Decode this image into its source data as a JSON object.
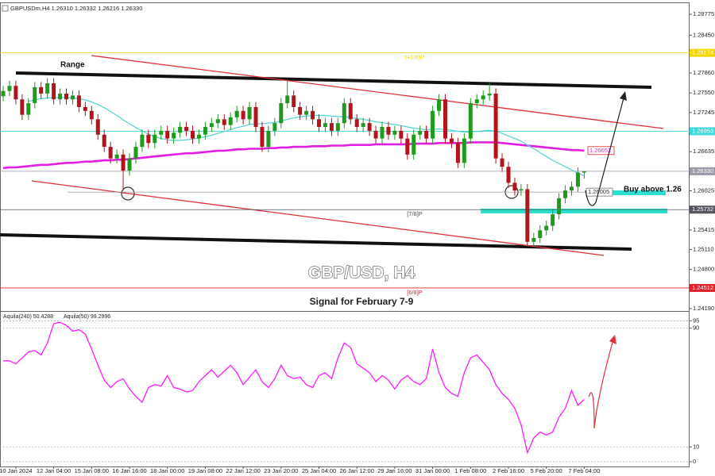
{
  "chart_data": [
    {
      "type": "candlestick",
      "title": "GBPUSDm,H4  1.26310 1.26332 1.26216 1.26330",
      "annotations": [
        "Range",
        "Buy above 1.26",
        "GBP/USD, H4",
        "Signal for February  7-9"
      ],
      "up_color": "#1f9a1f",
      "down_color": "#b3141c",
      "ylim": [
        1.24153,
        1.28936
      ],
      "yticks": [
        {
          "value": 1.28775,
          "label": "1.28775"
        },
        {
          "value": 1.2845,
          "label": "1.28450"
        },
        {
          "value": 1.2786,
          "label": "1.27860"
        },
        {
          "value": 1.2755,
          "label": "1.27550"
        },
        {
          "value": 1.27245,
          "label": "1.27245"
        },
        {
          "value": 1.26635,
          "label": "1.26635"
        },
        {
          "value": 1.26025,
          "label": "1.26025"
        },
        {
          "value": 1.25415,
          "label": "1.25415"
        },
        {
          "value": 1.2511,
          "label": "1.25110"
        },
        {
          "value": 1.248,
          "label": "1.24800"
        },
        {
          "value": 1.2419,
          "label": "1.24190"
        }
      ],
      "levels": [
        {
          "value": 1.28174,
          "label": "1.28174",
          "color": "#f2d600",
          "tag": "(+1/8)P"
        },
        {
          "value": 1.26953,
          "label": "1.26953",
          "color": "#3fd8d8"
        },
        {
          "value": 1.2633,
          "label": "1.26330",
          "color": "#9a9aa8"
        },
        {
          "value": 1.25732,
          "label": "1.25732",
          "color": "#55555f",
          "tag": "[7/8]P"
        },
        {
          "value": 1.24512,
          "label": "1.24512",
          "color": "#e0202a",
          "tag": "[6/8]P"
        }
      ],
      "chart_labels": [
        {
          "value": 1.26652,
          "label": "1.26652",
          "color": "#e0202a"
        },
        {
          "value": 1.26005,
          "label": "1.26005",
          "color": "#777777"
        }
      ],
      "categories": [
        null,
        null,
        "10 Jan 2024",
        null,
        null,
        null,
        null,
        null,
        "12 Jan 04:00",
        null,
        null,
        null,
        null,
        null,
        "15 Jan 08:00",
        null,
        null,
        null,
        null,
        null,
        "16 Jan 16:00",
        null,
        null,
        null,
        null,
        null,
        "18 Jan 00:00",
        null,
        null,
        null,
        null,
        null,
        "19 Jan 08:00",
        null,
        null,
        null,
        null,
        null,
        "22 Jan 12:00",
        null,
        null,
        null,
        null,
        null,
        "23 Jan 20:00",
        null,
        null,
        null,
        null,
        null,
        "25 Jan 04:00",
        null,
        null,
        null,
        null,
        null,
        "26 Jan 12:00",
        null,
        null,
        null,
        null,
        null,
        "29 Jan 16:00",
        null,
        null,
        null,
        null,
        null,
        "31 Jan 00:00",
        null,
        null,
        null,
        null,
        null,
        "1 Feb 08:00",
        null,
        null,
        null,
        null,
        null,
        "2 Feb 16:00",
        null,
        null,
        null,
        null,
        null,
        "5 Feb 20:00",
        null,
        null,
        null,
        null,
        null,
        "7 Feb 04:00"
      ],
      "open": [
        1.275,
        1.2758,
        1.2766,
        1.2745,
        1.2721,
        1.2739,
        1.2764,
        1.2754,
        1.277,
        1.2745,
        1.2754,
        1.2745,
        1.2751,
        1.2733,
        1.2727,
        1.2714,
        1.269,
        1.2671,
        1.2653,
        1.2659,
        1.2634,
        1.2653,
        1.2671,
        1.269,
        1.2677,
        1.269,
        1.2696,
        1.2684,
        1.2693,
        1.2702,
        1.2696,
        1.2684,
        1.269,
        1.2702,
        1.2708,
        1.2714,
        1.2705,
        1.2717,
        1.2727,
        1.2714,
        1.2733,
        1.2702,
        1.2671,
        1.2696,
        1.2708,
        1.2739,
        1.2751,
        1.2733,
        1.2721,
        1.2727,
        1.2714,
        1.2702,
        1.2708,
        1.2696,
        1.2708,
        1.2739,
        1.2714,
        1.2702,
        1.2708,
        1.2696,
        1.2684,
        1.2702,
        1.269,
        1.2696,
        1.2684,
        1.2659,
        1.269,
        1.2696,
        1.2684,
        1.2727,
        1.2745,
        1.2684,
        1.2677,
        1.2646,
        1.2684,
        1.2739,
        1.2745,
        1.2751,
        1.2754,
        1.2653,
        1.264,
        1.2615,
        1.2603,
        1.2605,
        1.2523,
        1.2529,
        1.2541,
        1.2548,
        1.2566,
        1.2591,
        1.2603,
        1.2609,
        1.2631
      ],
      "high": [
        1.2766,
        1.2774,
        1.2774,
        1.2753,
        1.2747,
        1.2772,
        1.2772,
        1.2778,
        1.2778,
        1.2762,
        1.2762,
        1.2759,
        1.2759,
        1.2741,
        1.2735,
        1.2722,
        1.2698,
        1.2679,
        1.2667,
        1.2667,
        1.2661,
        1.2679,
        1.2698,
        1.2698,
        1.2698,
        1.2704,
        1.2704,
        1.2701,
        1.271,
        1.271,
        1.2704,
        1.2698,
        1.271,
        1.2716,
        1.2722,
        1.2722,
        1.2725,
        1.2735,
        1.2735,
        1.2741,
        1.2741,
        1.271,
        1.2704,
        1.2716,
        1.2747,
        1.2776,
        1.2759,
        1.2741,
        1.2735,
        1.2735,
        1.2722,
        1.2716,
        1.2716,
        1.2716,
        1.2747,
        1.2747,
        1.2722,
        1.2716,
        1.2716,
        1.2704,
        1.271,
        1.271,
        1.2704,
        1.2704,
        1.2692,
        1.2698,
        1.2704,
        1.2704,
        1.2735,
        1.2753,
        1.2753,
        1.2692,
        1.2685,
        1.2692,
        1.2747,
        1.2753,
        1.2759,
        1.277,
        1.2762,
        1.2661,
        1.2648,
        1.2623,
        1.2613,
        1.2613,
        1.2537,
        1.2549,
        1.2556,
        1.2574,
        1.2599,
        1.2611,
        1.2617,
        1.2639,
        1.26332
      ],
      "low": [
        1.2742,
        1.275,
        1.2737,
        1.2713,
        1.2713,
        1.2731,
        1.2746,
        1.2746,
        1.2737,
        1.2737,
        1.2737,
        1.2737,
        1.2725,
        1.2719,
        1.2706,
        1.2682,
        1.2663,
        1.2645,
        1.2645,
        1.2603,
        1.2626,
        1.2645,
        1.2663,
        1.2669,
        1.2669,
        1.2682,
        1.2676,
        1.2676,
        1.2685,
        1.2688,
        1.2676,
        1.2676,
        1.2682,
        1.2694,
        1.27,
        1.2697,
        1.2697,
        1.2709,
        1.2706,
        1.2706,
        1.2694,
        1.2663,
        1.2663,
        1.2688,
        1.27,
        1.2731,
        1.2725,
        1.2713,
        1.2713,
        1.2706,
        1.2694,
        1.2694,
        1.2688,
        1.2688,
        1.27,
        1.2706,
        1.2694,
        1.2694,
        1.2688,
        1.2676,
        1.2676,
        1.2682,
        1.2682,
        1.2676,
        1.2651,
        1.2651,
        1.2682,
        1.2676,
        1.2676,
        1.2719,
        1.2676,
        1.2669,
        1.2638,
        1.2638,
        1.2676,
        1.2731,
        1.2737,
        1.2743,
        1.2645,
        1.2632,
        1.2607,
        1.2595,
        1.2595,
        1.2515,
        1.2515,
        1.2521,
        1.2533,
        1.254,
        1.2558,
        1.2583,
        1.2595,
        1.2601,
        1.26216
      ],
      "close": [
        1.2758,
        1.2766,
        1.2745,
        1.2721,
        1.2739,
        1.2764,
        1.2754,
        1.277,
        1.2745,
        1.2754,
        1.2745,
        1.2751,
        1.2733,
        1.2727,
        1.2714,
        1.269,
        1.2671,
        1.2653,
        1.2659,
        1.2634,
        1.2653,
        1.2671,
        1.269,
        1.2677,
        1.269,
        1.2696,
        1.2684,
        1.2693,
        1.2702,
        1.2696,
        1.2684,
        1.269,
        1.2702,
        1.2708,
        1.2714,
        1.2705,
        1.2717,
        1.2727,
        1.2714,
        1.2733,
        1.2702,
        1.2671,
        1.2696,
        1.2708,
        1.2739,
        1.2751,
        1.2733,
        1.2721,
        1.2727,
        1.2714,
        1.2702,
        1.2708,
        1.2696,
        1.2708,
        1.2739,
        1.2714,
        1.2702,
        1.2708,
        1.2696,
        1.2684,
        1.2702,
        1.269,
        1.2696,
        1.2684,
        1.2659,
        1.269,
        1.2696,
        1.2684,
        1.2727,
        1.2745,
        1.2684,
        1.2677,
        1.2646,
        1.2684,
        1.2739,
        1.2745,
        1.2751,
        1.2754,
        1.2653,
        1.264,
        1.2615,
        1.2603,
        1.2605,
        1.2523,
        1.2529,
        1.2541,
        1.2548,
        1.2566,
        1.2591,
        1.2603,
        1.2609,
        1.2631,
        1.2633
      ],
      "lines": [
        {
          "color": "#e21ee2",
          "values": [
            1.2638,
            1.2639,
            1.2639,
            1.264,
            1.2641,
            1.2642,
            1.2643,
            1.2643,
            1.2644,
            1.2645,
            1.2646,
            1.2646,
            1.2647,
            1.2648,
            1.2648,
            1.2649,
            1.265,
            1.265,
            1.2651,
            1.2651,
            1.2652,
            1.2653,
            1.2654,
            1.2655,
            1.2656,
            1.2657,
            1.2658,
            1.2659,
            1.266,
            1.2661,
            1.2661,
            1.2662,
            1.2663,
            1.2664,
            1.2665,
            1.2665,
            1.2666,
            1.2667,
            1.2667,
            1.2668,
            1.2668,
            1.2668,
            1.2669,
            1.2669,
            1.267,
            1.267,
            1.2671,
            1.2671,
            1.2671,
            1.2672,
            1.2672,
            1.2672,
            1.2673,
            1.2673,
            1.2673,
            1.2674,
            1.2674,
            1.2674,
            1.2674,
            1.2675,
            1.2675,
            1.2675,
            1.2675,
            1.2675,
            1.2675,
            1.2676,
            1.2676,
            1.2676,
            1.2676,
            1.2677,
            1.2677,
            1.2677,
            1.2677,
            1.2677,
            1.2678,
            1.2678,
            1.2678,
            1.2678,
            1.2678,
            1.2677,
            1.2676,
            1.2675,
            1.2674,
            1.2673,
            1.2672,
            1.2671,
            1.267,
            1.2669,
            1.2668,
            1.2667,
            1.2666,
            1.2666,
            1.2665
          ]
        },
        {
          "color": "#4fd3cf",
          "values": [
            null,
            null,
            null,
            null,
            1.2742,
            1.2744,
            1.2746,
            1.2747,
            1.2748,
            1.2748,
            1.2748,
            1.2747,
            1.2746,
            1.2744,
            1.2741,
            1.2737,
            1.2732,
            1.2726,
            1.272,
            1.2713,
            1.2707,
            1.2701,
            1.2696,
            1.2691,
            1.2687,
            1.2684,
            1.2682,
            1.2681,
            1.2681,
            1.2682,
            1.2683,
            1.2685,
            1.2687,
            1.2689,
            1.2692,
            1.2695,
            1.2698,
            1.2701,
            1.2703,
            1.2706,
            1.2707,
            1.2707,
            1.2708,
            1.2709,
            1.2711,
            1.2714,
            1.2716,
            1.2718,
            1.2719,
            1.272,
            1.272,
            1.272,
            1.2719,
            1.2718,
            1.2718,
            1.2717,
            1.2715,
            1.2714,
            1.2712,
            1.271,
            1.2709,
            1.2707,
            1.2706,
            1.2704,
            1.2702,
            1.27,
            1.2699,
            1.2698,
            1.2698,
            1.2699,
            1.2698,
            1.2697,
            1.2695,
            1.2694,
            1.2694,
            1.2695,
            1.2696,
            1.2697,
            1.2695,
            1.2692,
            1.2688,
            1.2684,
            1.268,
            1.2674,
            1.2668,
            1.2662,
            1.2656,
            1.265,
            1.2645,
            1.264,
            1.2635,
            1.263,
            1.2626
          ]
        }
      ]
    },
    {
      "type": "line",
      "series": [
        {
          "name": "Aquila(240) 50.4288",
          "color": "#ff19ff",
          "values": [
            68,
            68,
            66,
            70,
            74,
            75,
            72,
            80,
            93,
            94,
            92,
            88,
            89,
            86,
            76,
            65,
            55,
            50,
            54,
            56,
            49,
            44,
            40,
            50,
            52,
            51,
            58,
            50,
            49,
            47,
            48,
            54,
            58,
            62,
            57,
            61,
            65,
            60,
            52,
            57,
            62,
            54,
            50,
            56,
            65,
            58,
            56,
            57,
            52,
            50,
            58,
            60,
            56,
            70,
            80,
            77,
            66,
            63,
            60,
            54,
            58,
            55,
            49,
            55,
            58,
            54,
            52,
            56,
            76,
            60,
            50,
            46,
            44,
            60,
            70,
            72,
            67,
            62,
            52,
            46,
            42,
            36,
            25,
            6,
            16,
            20,
            18,
            20,
            30,
            36,
            48,
            38,
            42
          ]
        }
      ],
      "extra_legend": "Aquila(50) 99.2996",
      "ylim": [
        0,
        100
      ],
      "yticks": [
        95,
        90,
        10,
        0
      ]
    }
  ]
}
